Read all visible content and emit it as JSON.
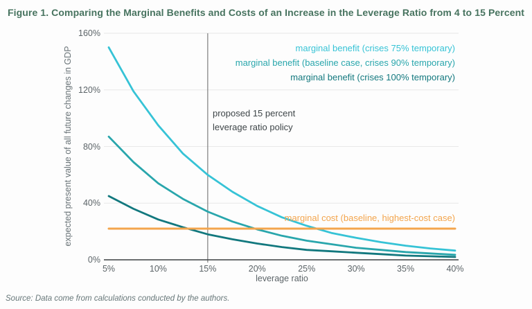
{
  "figure": {
    "title": "Figure 1. Comparing the Marginal Benefits and Costs of an Increase in the Leverage Ratio from 4 to 15 Percent",
    "source": "Source: Data come from calculations conducted by the authors."
  },
  "colors": {
    "title": "#47735f",
    "benefit75": "#36c3d6",
    "benefit90": "#29a6ac",
    "benefit100": "#12787e",
    "cost": "#f3a54d",
    "axis": "#3b3f42",
    "grid": "#e8e8e8",
    "reference_line": "#7d7d7d"
  },
  "chart_data": {
    "type": "line",
    "title": "Figure 1. Comparing the Marginal Benefits and Costs of an Increase in the Leverage Ratio from 4 to 15 Percent",
    "xlabel": "leverage ratio",
    "ylabel": "expected present value of all future changes in GDP",
    "xlim": [
      5,
      40
    ],
    "ylim": [
      0,
      160
    ],
    "x_ticks": [
      "5%",
      "10%",
      "15%",
      "20%",
      "25%",
      "30%",
      "35%",
      "40%"
    ],
    "x_tick_values": [
      5,
      10,
      15,
      20,
      25,
      30,
      35,
      40
    ],
    "y_ticks": [
      "0%",
      "40%",
      "80%",
      "120%",
      "160%"
    ],
    "y_tick_values": [
      0,
      40,
      80,
      120,
      160
    ],
    "grid": "horizontal",
    "legend_position": "top-right",
    "x": [
      5,
      7.5,
      10,
      12.5,
      15,
      17.5,
      20,
      22.5,
      25,
      27.5,
      30,
      32.5,
      35,
      37.5,
      40
    ],
    "series": [
      {
        "name": "marginal benefit (crises 75% temporary)",
        "color_key": "benefit75",
        "values": [
          150,
          119,
          95,
          75,
          60,
          48,
          38,
          30,
          24,
          19,
          15.5,
          12.5,
          10,
          8,
          6.5
        ]
      },
      {
        "name": "marginal benefit (baseline case, crises 90% temporary)",
        "color_key": "benefit90",
        "values": [
          87,
          69,
          54,
          43,
          34,
          27,
          21.5,
          17,
          13.5,
          11,
          8.5,
          7,
          5.5,
          4.5,
          3.5
        ]
      },
      {
        "name": "marginal benefit (crises 100% temporary)",
        "color_key": "benefit100",
        "values": [
          45,
          36,
          28.5,
          23,
          18,
          14.5,
          11.5,
          9,
          7,
          6,
          5,
          4,
          3,
          2.5,
          2
        ]
      },
      {
        "name": "marginal cost (baseline, highest-cost case)",
        "color_key": "cost",
        "values": [
          22,
          22,
          22,
          22,
          22,
          22,
          22,
          22,
          22,
          22,
          22,
          22,
          22,
          22,
          22
        ]
      }
    ],
    "reference_line": {
      "x": 15,
      "label_lines": [
        "proposed 15 percent",
        "leverage ratio policy"
      ]
    }
  }
}
